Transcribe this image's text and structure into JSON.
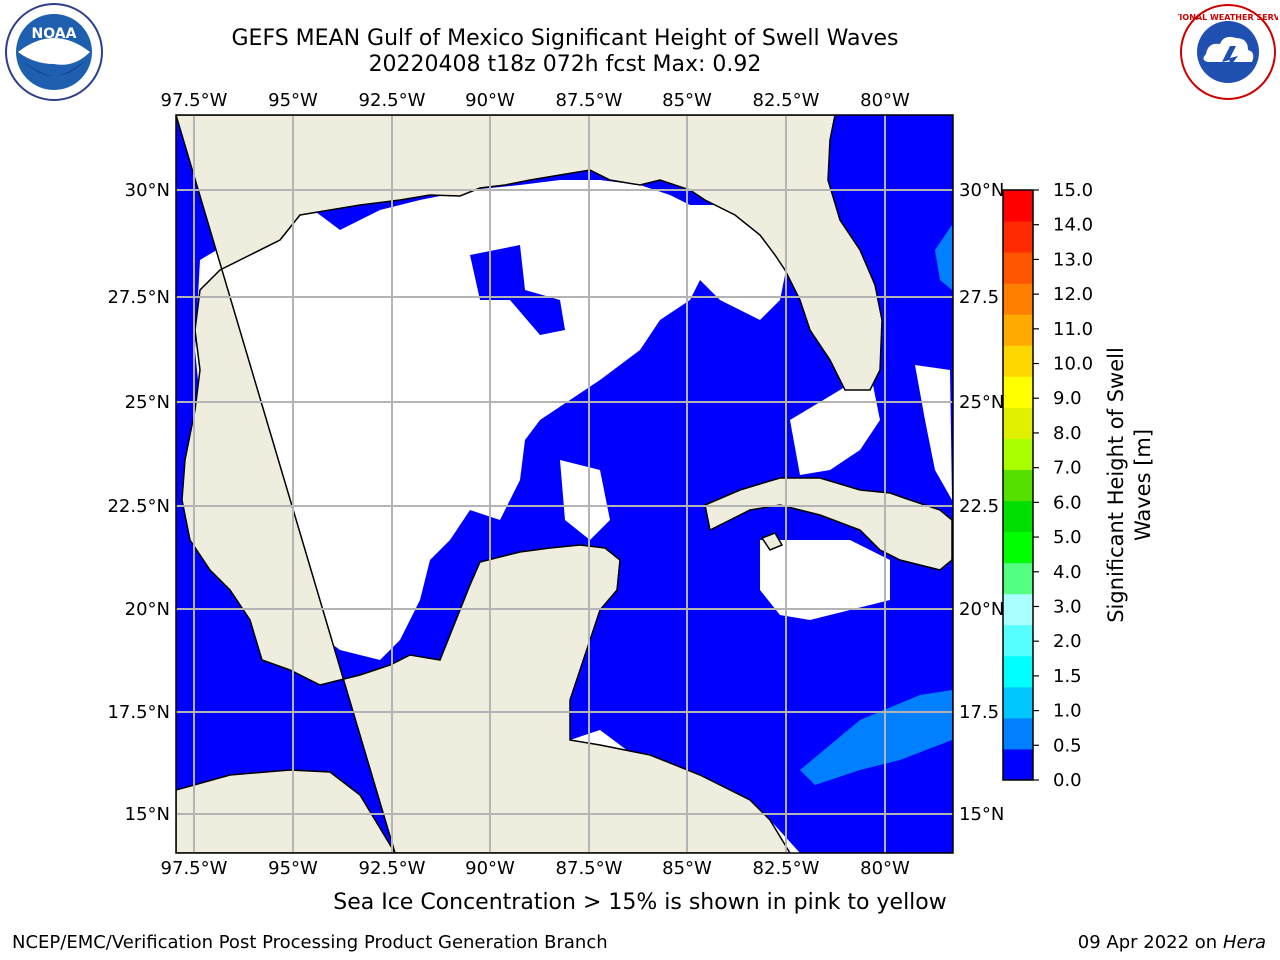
{
  "title": {
    "line1": "GEFS MEAN Gulf of Mexico Significant Height of Swell Waves",
    "line2": "20220408 t18z 072h fcst   Max: 0.92"
  },
  "map": {
    "lon_labels": [
      "97.5°W",
      "95°W",
      "92.5°W",
      "90°W",
      "87.5°W",
      "85°W",
      "82.5°W",
      "80°W"
    ],
    "lat_labels_left": [
      "30°N",
      "27.5°N",
      "25°N",
      "22.5°N",
      "20°N",
      "17.5°N",
      "15°N"
    ],
    "lat_labels_right": [
      "30°N",
      "27.5",
      "25°N",
      "22.5",
      "20°N",
      "17.5",
      "15°N"
    ],
    "colors": {
      "land": "#efeede",
      "low_swell": "#0000ff",
      "mid_swell": "#0080ff",
      "grid": "#b4b4b4"
    }
  },
  "colorbar": {
    "label_line1": "Significant Height of Swell",
    "label_line2": "Waves [m]",
    "ticks": [
      "0.0",
      "0.5",
      "1.0",
      "1.5",
      "2.0",
      "3.0",
      "4.0",
      "5.0",
      "6.0",
      "7.0",
      "8.0",
      "9.0",
      "10.0",
      "11.0",
      "12.0",
      "13.0",
      "14.0",
      "15.0"
    ],
    "colors": [
      "#0000ff",
      "#0080ff",
      "#00c8ff",
      "#00ffff",
      "#55ffff",
      "#aaffff",
      "#55ff80",
      "#00ff00",
      "#00e000",
      "#55e000",
      "#aaff00",
      "#e0f000",
      "#ffff00",
      "#ffd700",
      "#ffaa00",
      "#ff8000",
      "#ff5500",
      "#ff2a00",
      "#ff0000"
    ]
  },
  "logos": {
    "left": "NOAA",
    "right": "NATIONAL WEATHER SERVICE"
  },
  "subtitle": "Sea Ice Concentration > 15% is shown in pink to yellow",
  "footer": {
    "left": "NCEP/EMC/Verification Post Processing Product Generation Branch",
    "right_date": "09 Apr 2022 on",
    "right_machine": "Hera"
  }
}
